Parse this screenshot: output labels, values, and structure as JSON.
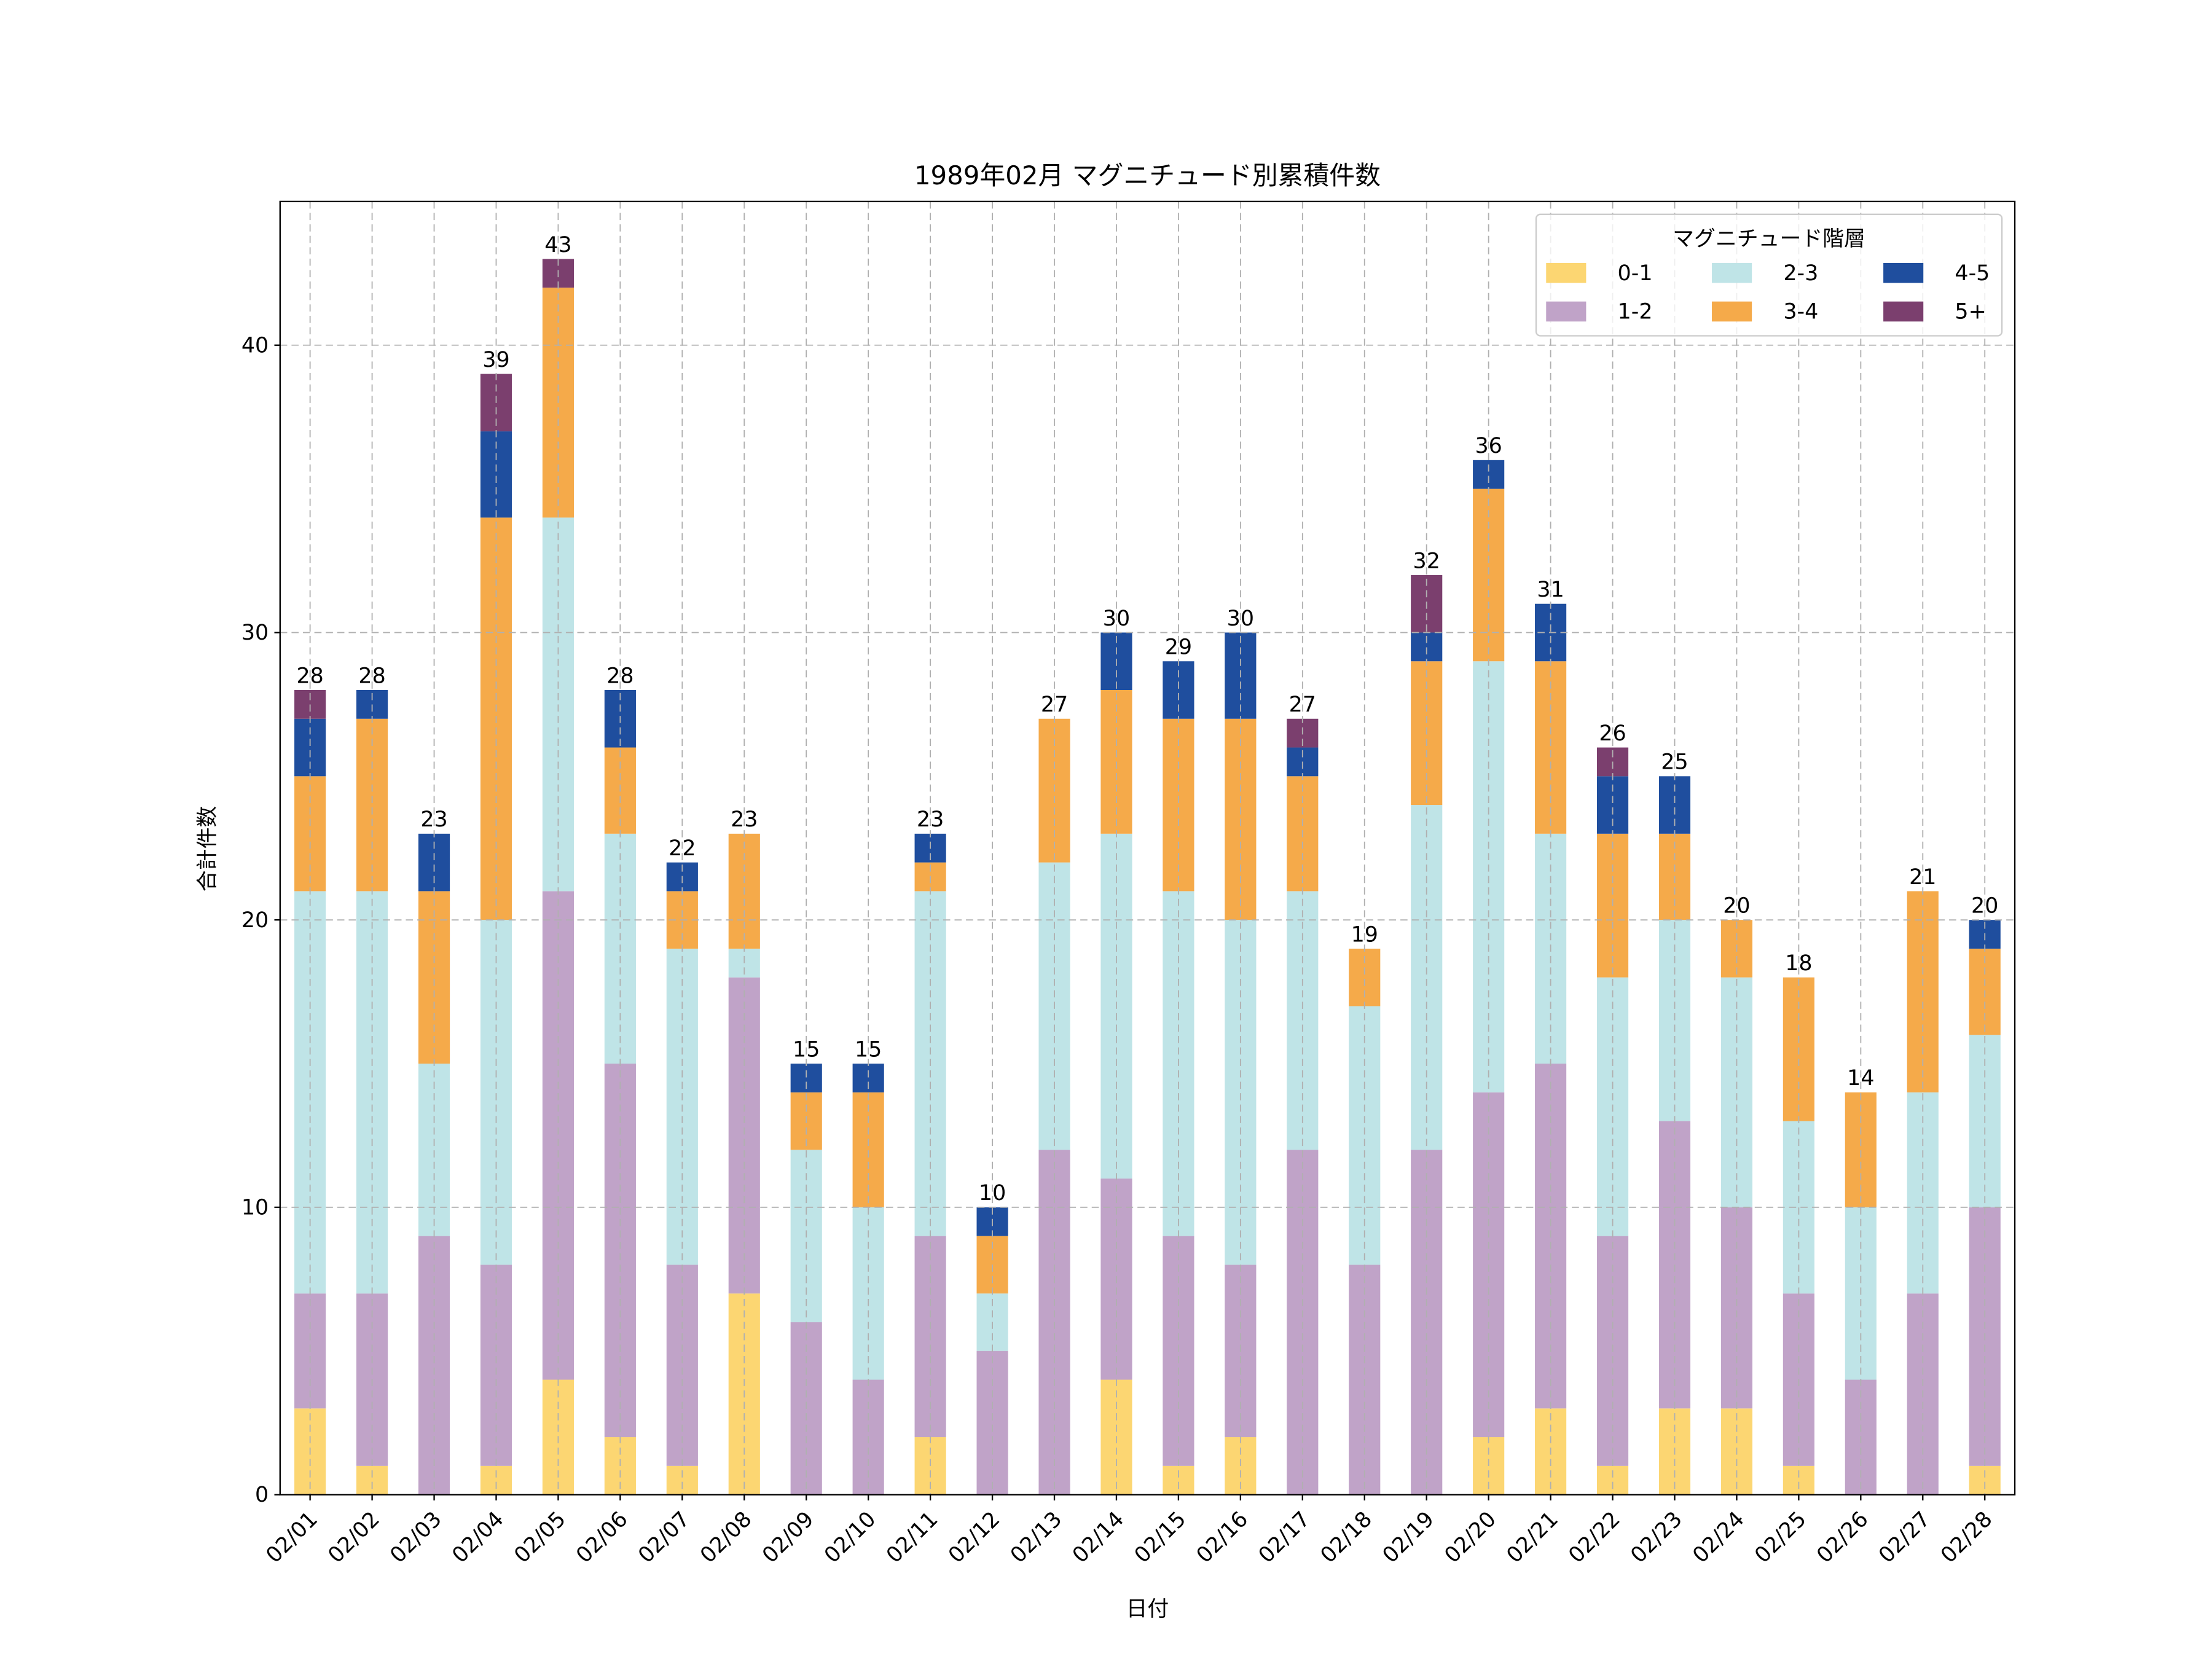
{
  "chart_data": {
    "type": "bar",
    "stacked": true,
    "title": "1989年02月 マグニチュード別累積件数",
    "xlabel": "日付",
    "ylabel": "合計件数",
    "ylim": [
      0,
      45
    ],
    "yticks": [
      0,
      10,
      20,
      30,
      40
    ],
    "grid": true,
    "legend": {
      "title": "マグニチュード階層",
      "placement": "top-right"
    },
    "categories": [
      "02/01",
      "02/02",
      "02/03",
      "02/04",
      "02/05",
      "02/06",
      "02/07",
      "02/08",
      "02/09",
      "02/10",
      "02/11",
      "02/12",
      "02/13",
      "02/14",
      "02/15",
      "02/16",
      "02/17",
      "02/18",
      "02/19",
      "02/20",
      "02/21",
      "02/22",
      "02/23",
      "02/24",
      "02/25",
      "02/26",
      "02/27",
      "02/28"
    ],
    "series": [
      {
        "name": "0-1",
        "color": "#fcd672",
        "values": [
          3,
          1,
          0,
          1,
          4,
          2,
          1,
          7,
          0,
          0,
          2,
          0,
          0,
          4,
          1,
          2,
          0,
          0,
          0,
          2,
          3,
          1,
          3,
          3,
          1,
          0,
          0,
          1
        ]
      },
      {
        "name": "1-2",
        "color": "#c0a3c8",
        "values": [
          4,
          6,
          9,
          7,
          17,
          13,
          7,
          11,
          6,
          4,
          7,
          5,
          12,
          7,
          8,
          6,
          12,
          8,
          12,
          12,
          12,
          8,
          10,
          7,
          6,
          4,
          7,
          9
        ]
      },
      {
        "name": "2-3",
        "color": "#bfe4e7",
        "values": [
          14,
          14,
          6,
          12,
          13,
          8,
          11,
          1,
          6,
          6,
          12,
          2,
          10,
          12,
          12,
          12,
          9,
          9,
          12,
          15,
          8,
          9,
          7,
          8,
          6,
          6,
          7,
          6
        ]
      },
      {
        "name": "3-4",
        "color": "#f5aa4a",
        "values": [
          4,
          6,
          6,
          14,
          8,
          3,
          2,
          4,
          2,
          4,
          1,
          2,
          5,
          5,
          6,
          7,
          4,
          2,
          5,
          6,
          6,
          5,
          3,
          2,
          5,
          4,
          7,
          3
        ]
      },
      {
        "name": "4-5",
        "color": "#1f4e9e",
        "values": [
          2,
          1,
          2,
          3,
          0,
          2,
          1,
          0,
          1,
          1,
          1,
          1,
          0,
          2,
          2,
          3,
          1,
          0,
          1,
          1,
          2,
          2,
          2,
          0,
          0,
          0,
          0,
          1
        ]
      },
      {
        "name": "5+",
        "color": "#7b3f6e",
        "values": [
          1,
          0,
          0,
          2,
          1,
          0,
          0,
          0,
          0,
          0,
          0,
          0,
          0,
          0,
          0,
          0,
          1,
          0,
          2,
          0,
          0,
          1,
          0,
          0,
          0,
          0,
          0,
          0
        ]
      }
    ],
    "totals": [
      28,
      28,
      23,
      39,
      43,
      28,
      22,
      23,
      15,
      15,
      23,
      10,
      27,
      30,
      29,
      30,
      27,
      19,
      32,
      36,
      31,
      26,
      25,
      20,
      18,
      14,
      21,
      20
    ]
  }
}
